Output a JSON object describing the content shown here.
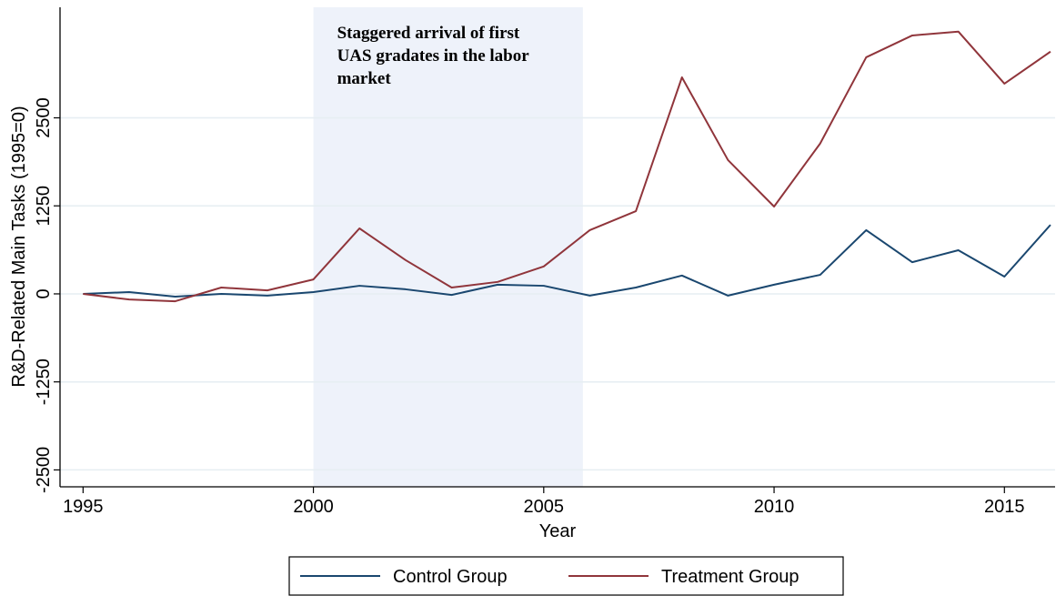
{
  "chart_data": {
    "type": "line",
    "xlabel": "Year",
    "ylabel": "R&D-Related Main Tasks (1995=0)",
    "x": [
      1995,
      1996,
      1997,
      1998,
      1999,
      2000,
      2001,
      2002,
      2003,
      2004,
      2005,
      2006,
      2007,
      2008,
      2009,
      2010,
      2011,
      2012,
      2013,
      2014,
      2015,
      2016
    ],
    "series": [
      {
        "name": "Control Group",
        "color": "#1a476f",
        "values": [
          0,
          25,
          -40,
          0,
          -25,
          25,
          115,
          65,
          -15,
          130,
          115,
          -25,
          90,
          260,
          -25,
          130,
          270,
          905,
          450,
          620,
          245,
          980
        ]
      },
      {
        "name": "Treatment Group",
        "color": "#90353b",
        "values": [
          0,
          -80,
          -105,
          90,
          50,
          205,
          930,
          480,
          90,
          170,
          390,
          905,
          1175,
          3075,
          1900,
          1240,
          2135,
          3360,
          3670,
          3725,
          2985,
          3440
        ]
      }
    ],
    "xlim": [
      1994.5,
      2016.1
    ],
    "ylim": [
      -2740,
      4070
    ],
    "xticks": [
      1995,
      2000,
      2005,
      2010,
      2015
    ],
    "yticks": [
      -2500,
      -1250,
      0,
      1250,
      2500
    ],
    "grid": true,
    "legend": "bottom",
    "shaded_region": {
      "x": [
        2000,
        2005.85
      ],
      "color": "#eef2fa",
      "label": [
        "Staggered arrival of first",
        "UAS gradates in the labor",
        "market"
      ]
    }
  }
}
